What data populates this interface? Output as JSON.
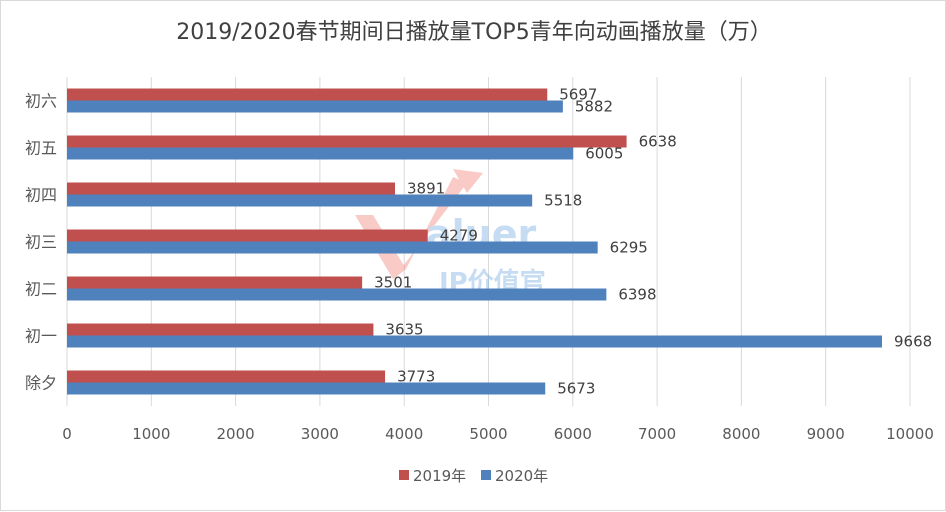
{
  "chart_data": {
    "type": "bar",
    "orientation": "horizontal",
    "title": "2019/2020春节期间日播放量TOP5青年向动画播放量（万）",
    "categories": [
      "初六",
      "初五",
      "初四",
      "初三",
      "初二",
      "初一",
      "除夕"
    ],
    "series": [
      {
        "name": "2019年",
        "color": "#c0504d",
        "values": [
          5697,
          6638,
          3891,
          4279,
          3501,
          3635,
          3773
        ]
      },
      {
        "name": "2020年",
        "color": "#4f81bd",
        "values": [
          5882,
          6005,
          5518,
          6295,
          6398,
          9668,
          5673
        ]
      }
    ],
    "xlim": [
      0,
      10000
    ],
    "xticks": [
      0,
      1000,
      2000,
      3000,
      4000,
      5000,
      6000,
      7000,
      8000,
      9000,
      10000
    ],
    "grid": true,
    "legend": "bottom",
    "watermark": {
      "text": "Valuer",
      "subtext": "IP价值官"
    }
  }
}
